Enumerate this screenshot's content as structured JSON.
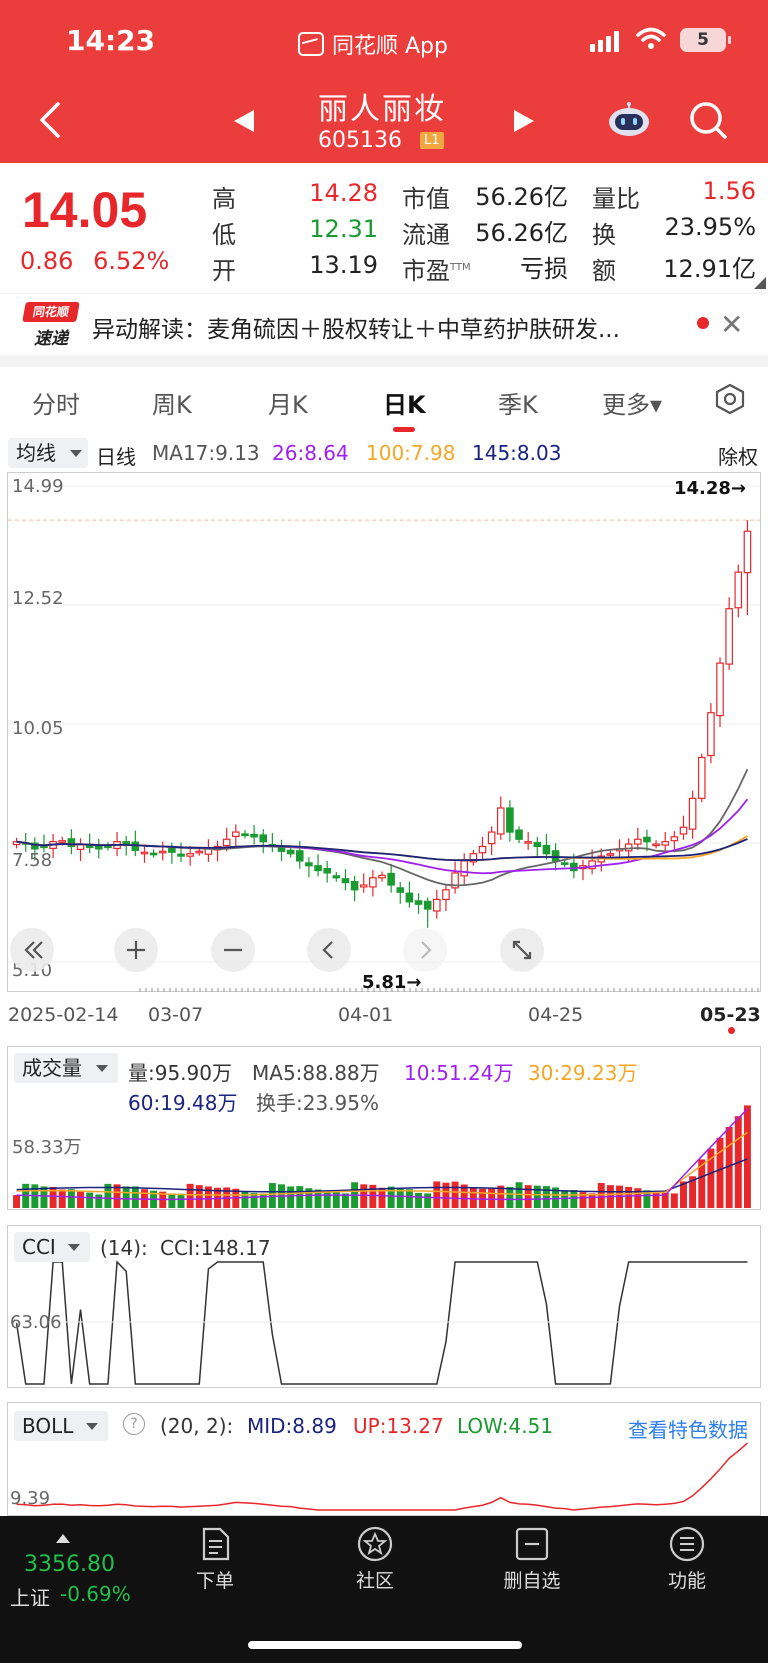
{
  "status_bar": {
    "time": "14:23",
    "app_name": "同花顺 App",
    "battery": "5"
  },
  "header": {
    "stock_name": "丽人丽妆",
    "stock_code": "605136",
    "level_badge": "L1"
  },
  "quote": {
    "price": "14.05",
    "change": "0.86",
    "change_pct": "6.52%",
    "high_label": "高",
    "high": "14.28",
    "low_label": "低",
    "low": "12.31",
    "open_label": "开",
    "open": "13.19",
    "mcap_label": "市值",
    "mcap": "56.26亿",
    "float_label": "流通",
    "float": "56.26亿",
    "pe_label": "市盈",
    "pe_sup": "TTM",
    "pe": "亏损",
    "volratio_label": "量比",
    "volratio": "1.56",
    "turnover_label": "换",
    "turnover": "23.95%",
    "amount_label": "额",
    "amount": "12.91亿"
  },
  "news": {
    "logo_top": "同花顺",
    "logo_bottom": "速递",
    "text": "异动解读：麦角硫因＋股权转让＋中草药护肤研发..."
  },
  "tabs": [
    "分时",
    "周K",
    "月K",
    "日K",
    "季K",
    "更多▾"
  ],
  "ma": {
    "selector": "均线",
    "period": "日线",
    "ma17": "MA17:9.13",
    "ma26": "26:8.64",
    "ma100": "100:7.98",
    "ma145": "145:8.03",
    "adjust": "除权"
  },
  "kline": {
    "y_labels": [
      "14.99",
      "12.52",
      "10.05",
      "7.58",
      "5.10"
    ],
    "high_marker": "14.28→",
    "low_marker": "5.81→",
    "dates": [
      "2025-02-14",
      "03-07",
      "04-01",
      "04-25",
      "05-23"
    ]
  },
  "volume": {
    "selector": "成交量",
    "vol": "量:95.90万",
    "ma5": "MA5:88.88万",
    "ma10": "10:51.24万",
    "ma30": "30:29.23万",
    "ma60": "60:19.48万",
    "turnover": "换手:23.95%",
    "y_label": "58.33万"
  },
  "cci": {
    "selector": "CCI",
    "params": "(14):",
    "value": "CCI:148.17",
    "y_label": "63.06"
  },
  "boll": {
    "selector": "BOLL",
    "params": "(20, 2):",
    "mid": "MID:8.89",
    "up": "UP:13.27",
    "low": "LOW:4.51",
    "link": "查看特色数据",
    "y_label": "9.39"
  },
  "bottom_bar": {
    "index_value": "3356.80",
    "index_name": "上证",
    "index_change": "-0.69%",
    "nav": [
      "下单",
      "社区",
      "删自选",
      "功能"
    ]
  },
  "colors": {
    "brand_red": "#ec3d3d",
    "up": "#e8272b",
    "down": "#1a9b32",
    "ma_gray": "#666666",
    "ma_purple": "#a020f0",
    "ma_orange": "#f5a623",
    "ma_blue": "#1a237e"
  },
  "chart_data": {
    "type": "candlestick",
    "dates": [
      "2025-02-14",
      "03-07",
      "04-01",
      "04-25",
      "05-23"
    ],
    "ylim": [
      5.1,
      14.99
    ],
    "last": {
      "open": 13.19,
      "high": 14.28,
      "low": 12.31,
      "close": 14.05
    },
    "period_high": 14.28,
    "period_low": 5.81,
    "closes": [
      7.6,
      7.55,
      7.45,
      7.5,
      7.6,
      7.62,
      7.5,
      7.55,
      7.48,
      7.45,
      7.5,
      7.6,
      7.55,
      7.42,
      7.38,
      7.35,
      7.4,
      7.38,
      7.3,
      7.35,
      7.4,
      7.45,
      7.5,
      7.65,
      7.8,
      7.75,
      7.7,
      7.6,
      7.5,
      7.4,
      7.35,
      7.2,
      7.1,
      7.0,
      6.95,
      6.85,
      6.75,
      6.6,
      6.7,
      6.85,
      6.9,
      6.7,
      6.55,
      6.35,
      6.3,
      6.2,
      6.4,
      6.6,
      6.95,
      7.2,
      7.35,
      7.5,
      7.8,
      8.3,
      7.8,
      7.65,
      7.6,
      7.5,
      7.35,
      7.2,
      7.15,
      7.0,
      7.1,
      7.2,
      7.3,
      7.35,
      7.45,
      7.55,
      7.65,
      7.6,
      7.55,
      7.6,
      7.7,
      7.9,
      8.5,
      9.35,
      10.28,
      11.31,
      12.44,
      13.2,
      14.05
    ],
    "ma17": 9.13,
    "ma26": 8.64,
    "ma100": 7.98,
    "ma145": 8.03
  }
}
